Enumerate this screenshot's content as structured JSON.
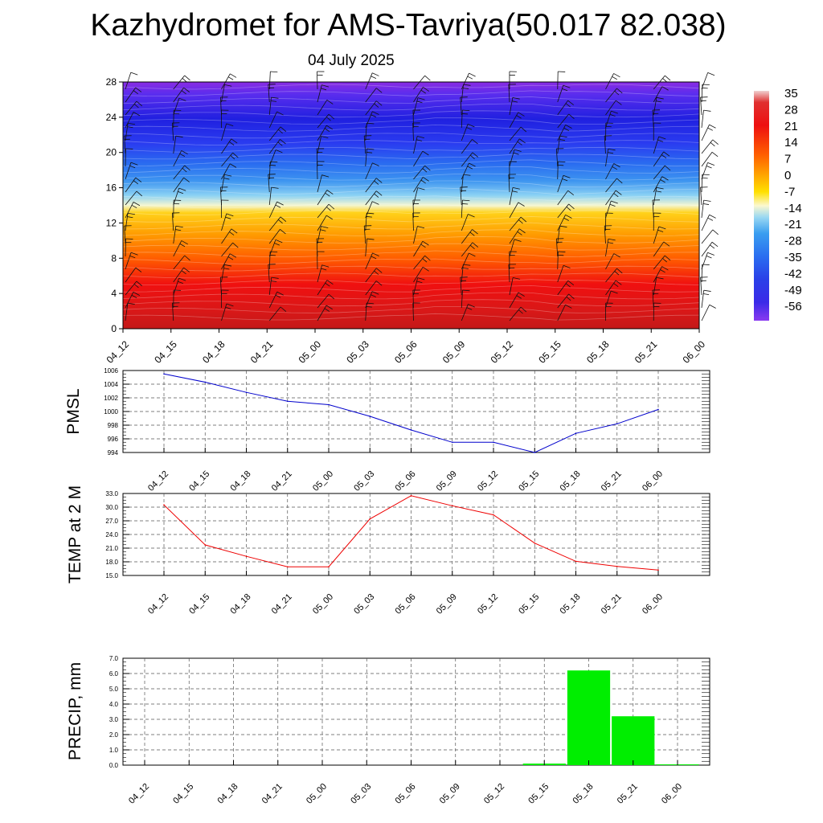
{
  "header": {
    "title": "Kazhydromet for AMS-Tavriya(50.017 82.038)",
    "date": "04 July 2025"
  },
  "colors": {
    "pmsl_line": "#0000cc",
    "temp_line": "#ee0000",
    "precip_bar": "#00ee00",
    "grid": "#555555"
  },
  "chart_data": [
    {
      "type": "heatmap",
      "title": "",
      "x_ticks": [
        "04_12",
        "04_15",
        "04_18",
        "04_21",
        "05_00",
        "05_03",
        "05_06",
        "05_09",
        "05_12",
        "05_15",
        "05_18",
        "05_21",
        "06_00"
      ],
      "y_ticks": [
        0,
        4,
        8,
        12,
        16,
        20,
        24,
        28
      ],
      "ylim": [
        0,
        28
      ],
      "colorbar_labels": [
        "35",
        "28",
        "21",
        "14",
        "7",
        "0",
        "-7",
        "-14",
        "-21",
        "-28",
        "-35",
        "-42",
        "-49",
        "-56"
      ],
      "overlay": "wind barbs"
    },
    {
      "type": "line",
      "ylabel": "PMSL",
      "x": [
        "04_12",
        "04_15",
        "04_18",
        "04_21",
        "05_00",
        "05_03",
        "05_06",
        "05_09",
        "05_12",
        "05_15",
        "05_18",
        "05_21",
        "06_00"
      ],
      "values": [
        1005.5,
        1004.3,
        1002.8,
        1001.5,
        1001.0,
        999.3,
        997.3,
        995.5,
        995.5,
        994.0,
        996.8,
        998.2,
        1000.3
      ],
      "ylim": [
        994,
        1006
      ],
      "y_ticks": [
        "994",
        "996",
        "998",
        "1000",
        "1002",
        "1004",
        "1006"
      ],
      "grid": true
    },
    {
      "type": "line",
      "ylabel": "TEMP at 2 M",
      "x": [
        "04_12",
        "04_15",
        "04_18",
        "04_21",
        "05_00",
        "05_03",
        "05_06",
        "05_09",
        "05_12",
        "05_15",
        "05_18",
        "05_21",
        "06_00"
      ],
      "values": [
        30.5,
        21.7,
        19.2,
        16.9,
        16.9,
        27.4,
        32.5,
        30.3,
        28.3,
        22.1,
        18.1,
        17.0,
        16.2
      ],
      "ylim": [
        15,
        33
      ],
      "y_ticks": [
        "15.0",
        "18.0",
        "21.0",
        "24.0",
        "27.0",
        "30.0",
        "33.0"
      ],
      "grid": true
    },
    {
      "type": "bar",
      "ylabel": "PRECIP, mm",
      "categories": [
        "04_12",
        "04_15",
        "04_18",
        "04_21",
        "05_00",
        "05_03",
        "05_06",
        "05_09",
        "05_12",
        "05_15",
        "05_18",
        "05_21",
        "06_00"
      ],
      "values": [
        0,
        0,
        0,
        0,
        0,
        0,
        0,
        0,
        0,
        0.1,
        6.2,
        3.2,
        0.05
      ],
      "ylim": [
        0,
        7
      ],
      "y_ticks": [
        "0.0",
        "1.0",
        "2.0",
        "3.0",
        "4.0",
        "5.0",
        "6.0",
        "7.0"
      ],
      "grid": true
    }
  ]
}
